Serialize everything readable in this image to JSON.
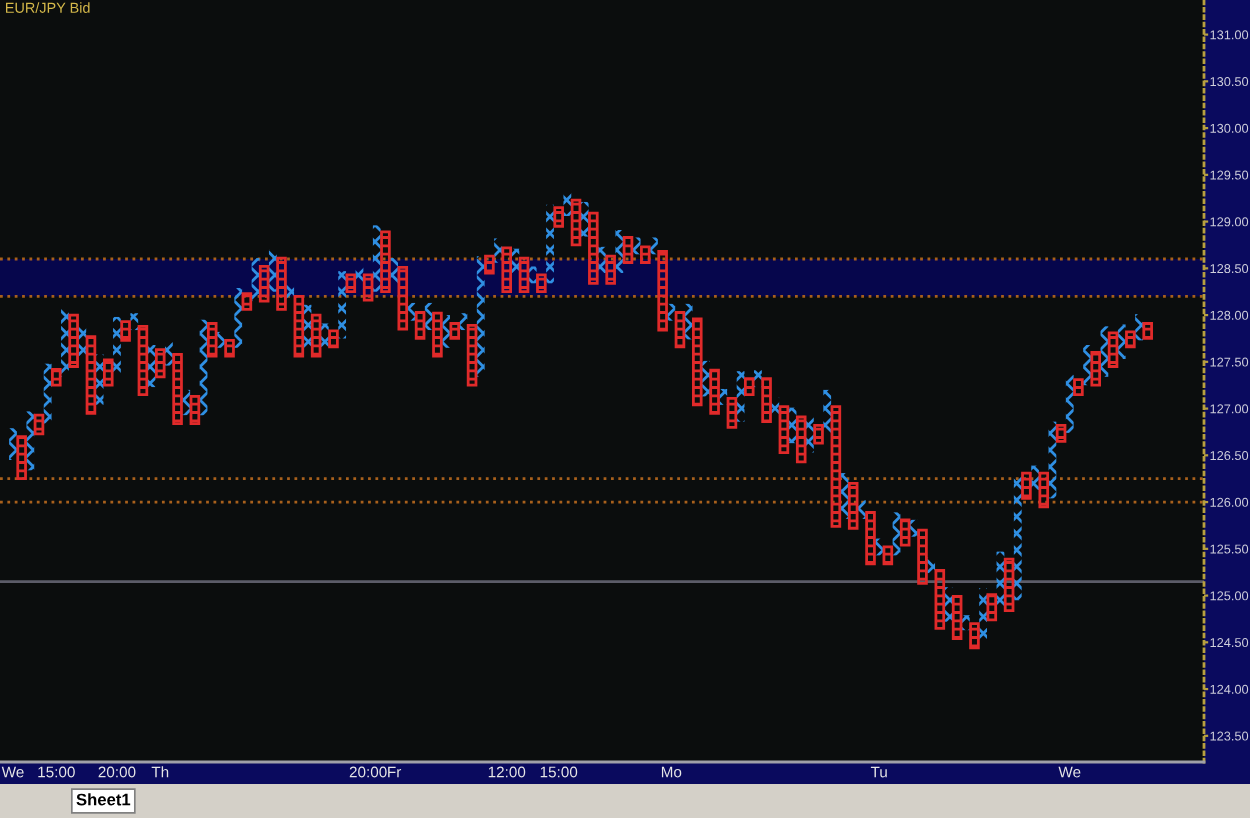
{
  "chart_data": {
    "type": "bar",
    "title": "EUR/JPY Bid",
    "annotations": [
      "Sheet1"
    ],
    "categories": [
      null,
      "We",
      null,
      null,
      null,
      null,
      "15:00",
      null,
      null,
      null,
      null,
      null,
      null,
      "20:00",
      null,
      null,
      null,
      null,
      "Th",
      null,
      null,
      null,
      null,
      null,
      null,
      null,
      null,
      null,
      null,
      null,
      null,
      null,
      null,
      null,
      null,
      null,
      null,
      null,
      null,
      null,
      null,
      null,
      "20:00",
      null,
      null,
      "Fr",
      null,
      null,
      null,
      null,
      null,
      null,
      null,
      null,
      null,
      null,
      null,
      null,
      "12:00",
      null,
      null,
      null,
      null,
      null,
      "15:00",
      null,
      null,
      null,
      null,
      null,
      null,
      null,
      null,
      null,
      null,
      null,
      null,
      "Mo",
      null,
      null,
      null,
      null,
      null,
      null,
      null,
      null,
      null,
      null,
      null,
      null,
      null,
      null,
      null,
      null,
      null,
      null,
      null,
      null,
      null,
      null,
      null,
      "Tu",
      null,
      null,
      null,
      null,
      null,
      null,
      null,
      null,
      null,
      null,
      null,
      null,
      null,
      null,
      null,
      null,
      null,
      null,
      null,
      null,
      null,
      "We",
      null,
      null,
      null,
      null,
      null,
      null,
      null,
      null,
      null,
      null,
      null,
      null,
      null,
      null,
      null
    ],
    "series": [
      {
        "color": "#2f8fe3",
        "marker": "cross",
        "base": [
          null,
          126.45,
          null,
          126.34,
          null,
          126.84,
          null,
          127.34,
          null,
          127.56,
          null,
          127.04,
          null,
          127.34,
          null,
          127.84,
          null,
          127.23,
          null,
          127.46,
          null,
          126.93,
          null,
          126.93,
          null,
          127.65,
          null,
          127.65,
          null,
          128.15,
          null,
          128.25,
          null,
          128.16,
          null,
          127.65,
          null,
          127.66,
          null,
          127.75,
          null,
          128.34,
          null,
          128.25,
          null,
          128.34,
          null,
          127.94,
          null,
          127.84,
          null,
          127.65,
          null,
          127.84,
          null,
          127.34,
          null,
          128.56,
          null,
          128.45,
          null,
          128.34,
          null,
          128.34,
          null,
          129.06,
          null,
          128.84,
          null,
          128.45,
          null,
          128.45,
          null,
          128.65,
          null,
          128.65,
          null,
          127.94,
          null,
          127.74,
          null,
          127.13,
          null,
          127.04,
          null,
          126.86,
          null,
          127.23,
          null,
          126.91,
          null,
          126.63,
          null,
          126.53,
          null,
          126.74,
          null,
          125.82,
          null,
          125.82,
          null,
          125.43,
          null,
          125.43,
          null,
          125.63,
          null,
          125.24,
          null,
          124.72,
          null,
          124.63,
          null,
          124.52,
          null,
          124.84,
          null,
          124.95,
          null,
          126.13,
          null,
          126.04,
          null,
          126.74,
          null,
          127.25,
          null,
          127.34,
          null,
          127.53,
          null,
          127.73,
          null,
          null,
          null,
          null,
          null,
          null,
          null
        ],
        "values": [
          null,
          0.34,
          null,
          0.63,
          null,
          0.64,
          null,
          0.73,
          null,
          0.35,
          null,
          0.54,
          null,
          0.64,
          null,
          0.18,
          null,
          0.45,
          null,
          0.25,
          null,
          0.27,
          null,
          1.02,
          null,
          0.17,
          null,
          0.64,
          null,
          0.46,
          null,
          0.45,
          null,
          0.17,
          null,
          0.46,
          null,
          0.25,
          null,
          0.72,
          null,
          0.18,
          null,
          0.71,
          null,
          0.27,
          null,
          0.19,
          null,
          0.29,
          null,
          0.35,
          null,
          0.18,
          null,
          1.29,
          null,
          0.26,
          null,
          0.26,
          null,
          0.18,
          null,
          0.84,
          null,
          0.27,
          null,
          0.37,
          null,
          0.28,
          null,
          0.46,
          null,
          0.18,
          null,
          0.18,
          null,
          0.18,
          null,
          0.38,
          null,
          0.38,
          null,
          0.17,
          null,
          0.54,
          null,
          0.18,
          null,
          0.21,
          null,
          0.38,
          null,
          0.38,
          null,
          0.46,
          null,
          0.49,
          null,
          0.2,
          null,
          0.18,
          null,
          0.46,
          null,
          0.18,
          null,
          0.17,
          null,
          0.37,
          null,
          0.16,
          null,
          0.56,
          null,
          0.63,
          null,
          1.36,
          null,
          0.26,
          null,
          0.82,
          null,
          0.62,
          null,
          0.43,
          null,
          0.54,
          null,
          0.37,
          null,
          0.28,
          null,
          null,
          null,
          null,
          null,
          null,
          null
        ]
      },
      {
        "color": "#e02a2a",
        "marker": "square",
        "base": [
          null,
          null,
          126.25,
          null,
          126.73,
          null,
          127.25,
          null,
          127.45,
          null,
          126.95,
          null,
          127.25,
          null,
          127.73,
          null,
          127.15,
          null,
          127.34,
          null,
          126.84,
          null,
          126.84,
          null,
          127.56,
          null,
          127.56,
          null,
          128.06,
          null,
          128.15,
          null,
          128.06,
          null,
          127.56,
          null,
          127.56,
          null,
          127.66,
          null,
          128.25,
          null,
          128.16,
          null,
          128.25,
          null,
          127.85,
          null,
          127.75,
          null,
          127.56,
          null,
          127.75,
          null,
          127.25,
          null,
          128.45,
          null,
          128.25,
          null,
          128.25,
          null,
          128.25,
          null,
          128.95,
          null,
          128.75,
          null,
          128.34,
          null,
          128.34,
          null,
          128.56,
          null,
          128.56,
          null,
          127.84,
          null,
          127.66,
          null,
          127.04,
          null,
          126.95,
          null,
          126.8,
          null,
          127.15,
          null,
          126.86,
          null,
          126.53,
          null,
          126.43,
          null,
          126.63,
          null,
          125.74,
          null,
          125.72,
          null,
          125.34,
          null,
          125.34,
          null,
          125.54,
          null,
          125.13,
          null,
          124.65,
          null,
          124.54,
          null,
          124.44,
          null,
          124.74,
          null,
          124.84,
          null,
          126.04,
          null,
          125.95,
          null,
          126.65,
          null,
          127.15,
          null,
          127.25,
          null,
          127.45,
          null,
          127.66,
          null,
          127.75,
          null,
          null,
          null,
          null,
          null,
          null
        ],
        "values": [
          null,
          null,
          0.45,
          null,
          0.2,
          null,
          0.17,
          null,
          0.55,
          null,
          0.82,
          null,
          0.27,
          null,
          0.2,
          null,
          0.73,
          null,
          0.29,
          null,
          0.74,
          null,
          0.29,
          null,
          0.35,
          null,
          0.17,
          null,
          0.17,
          null,
          0.37,
          null,
          0.55,
          null,
          0.64,
          null,
          0.44,
          null,
          0.17,
          null,
          0.18,
          null,
          0.27,
          null,
          0.64,
          null,
          0.66,
          null,
          0.28,
          null,
          0.46,
          null,
          0.16,
          null,
          0.64,
          null,
          0.18,
          null,
          0.47,
          null,
          0.36,
          null,
          0.18,
          null,
          0.2,
          null,
          0.48,
          null,
          0.75,
          null,
          0.29,
          null,
          0.27,
          null,
          0.17,
          null,
          0.84,
          null,
          0.37,
          null,
          0.92,
          null,
          0.46,
          null,
          0.31,
          null,
          0.17,
          null,
          0.46,
          null,
          0.49,
          null,
          0.48,
          null,
          0.19,
          null,
          1.28,
          null,
          0.48,
          null,
          0.55,
          null,
          0.18,
          null,
          0.27,
          null,
          0.57,
          null,
          0.62,
          null,
          0.45,
          null,
          0.26,
          null,
          0.27,
          null,
          0.55,
          null,
          0.27,
          null,
          0.36,
          null,
          0.17,
          null,
          0.16,
          null,
          0.35,
          null,
          0.36,
          null,
          0.16,
          null,
          0.16,
          null,
          null,
          null,
          null,
          null,
          null
        ]
      }
    ],
    "ylim": [
      123.22,
      131.37
    ],
    "yticks": [
      {
        "value": 123.5,
        "label": "123.50"
      },
      {
        "value": 124.0,
        "label": "124.00"
      },
      {
        "value": 124.5,
        "label": "124.50"
      },
      {
        "value": 125.0,
        "label": "125.00"
      },
      {
        "value": 125.5,
        "label": "125.50"
      },
      {
        "value": 126.0,
        "label": "126.00"
      },
      {
        "value": 126.5,
        "label": "126.50"
      },
      {
        "value": 127.0,
        "label": "127.00"
      },
      {
        "value": 127.5,
        "label": "127.50"
      },
      {
        "value": 128.0,
        "label": "128.00"
      },
      {
        "value": 128.5,
        "label": "128.50"
      },
      {
        "value": 129.0,
        "label": "129.00"
      },
      {
        "value": 129.5,
        "label": "129.50"
      },
      {
        "value": 130.0,
        "label": "130.00"
      },
      {
        "value": 130.5,
        "label": "130.50"
      },
      {
        "value": 131.0,
        "label": "131.00"
      }
    ],
    "ref_lines": [
      {
        "axis": "y",
        "value": 128.6,
        "color": "#a8601c",
        "line_style": "dotted"
      },
      {
        "axis": "y",
        "value": 128.2,
        "color": "#a8601c",
        "line_style": "dotted"
      },
      {
        "axis": "y",
        "value": 126.25,
        "color": "#a8601c",
        "line_style": "dotted"
      },
      {
        "axis": "y",
        "value": 126.0,
        "color": "#a8601c",
        "line_style": "dotted"
      },
      {
        "axis": "y",
        "value": 125.15,
        "color": "#5c5c68",
        "line_style": "solid"
      }
    ],
    "bands": [
      {
        "axis": "y",
        "from": 128.2,
        "to": 128.6,
        "color": "#06064c"
      }
    ]
  }
}
